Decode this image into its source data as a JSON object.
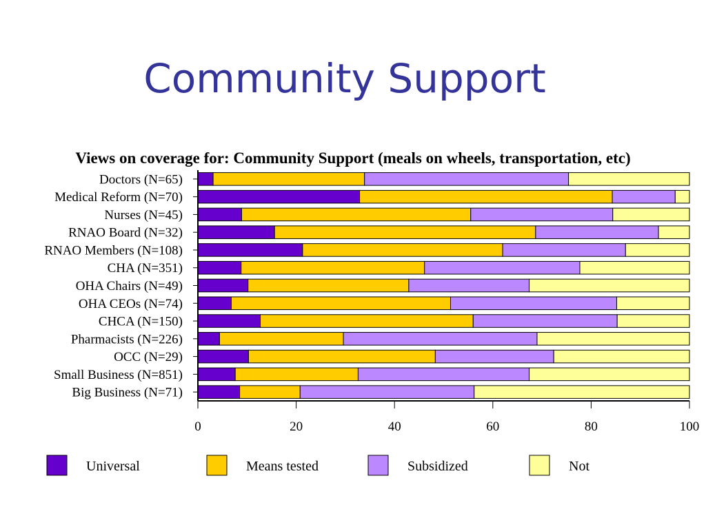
{
  "slide": {
    "title": "Community Support"
  },
  "chart_data": {
    "type": "bar",
    "orientation": "horizontal",
    "stacked": true,
    "title": "Views on coverage for: Community Support (meals on wheels, transportation, etc)",
    "xlabel": "",
    "ylabel": "",
    "xlim": [
      0,
      100
    ],
    "xticks": [
      0,
      20,
      40,
      60,
      80,
      100
    ],
    "grid": false,
    "legend_position": "bottom",
    "categories": [
      "Doctors (N=65)",
      "Medical Reform (N=70)",
      "Nurses (N=45)",
      "RNAO Board (N=32)",
      "RNAO Members (N=108)",
      "CHA (N=351)",
      "OHA Chairs (N=49)",
      "OHA CEOs (N=74)",
      "CHCA (N=150)",
      "Pharmacists (N=226)",
      "OCC (N=29)",
      "Small Business (N=851)",
      "Big Business (N=71)"
    ],
    "series": [
      {
        "name": "Universal",
        "color": "#6600CC",
        "values": [
          3.1,
          32.9,
          8.9,
          15.6,
          21.3,
          8.8,
          10.2,
          6.8,
          12.7,
          4.4,
          10.3,
          7.6,
          8.5
        ]
      },
      {
        "name": "Means tested",
        "color": "#FFCC00",
        "values": [
          30.8,
          51.4,
          46.6,
          53.1,
          40.7,
          37.3,
          32.7,
          44.6,
          43.3,
          25.2,
          38.0,
          25.0,
          12.3
        ]
      },
      {
        "name": "Subsidized",
        "color": "#BB88FF",
        "values": [
          41.5,
          12.8,
          28.9,
          25.0,
          25.0,
          31.6,
          24.5,
          33.8,
          29.3,
          39.4,
          24.1,
          34.8,
          35.4
        ]
      },
      {
        "name": "Not",
        "color": "#FFFF99",
        "values": [
          24.6,
          2.9,
          15.6,
          6.3,
          13.0,
          22.3,
          32.6,
          14.8,
          14.7,
          31.0,
          27.6,
          32.6,
          43.8
        ]
      }
    ]
  }
}
